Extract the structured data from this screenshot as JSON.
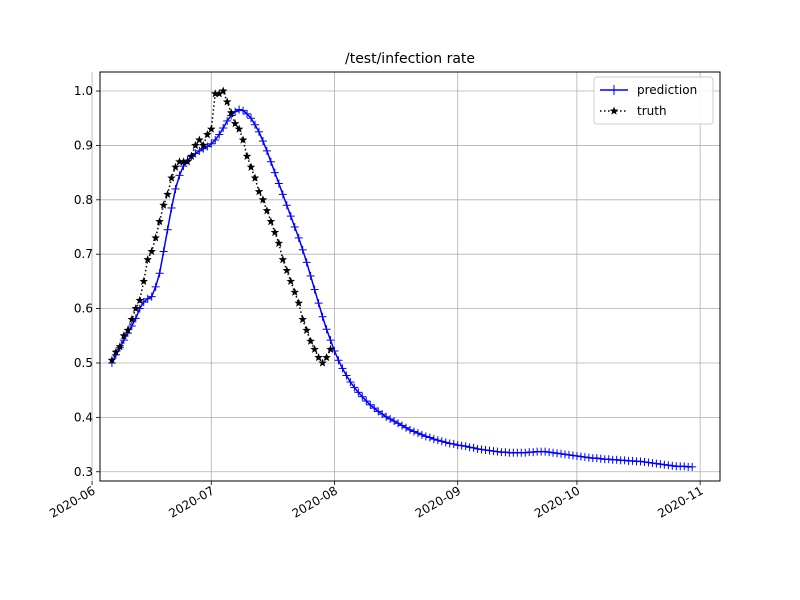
{
  "chart_data": {
    "type": "line",
    "title": "/test/infection rate",
    "xlabel": "",
    "ylabel": "",
    "x_axis_type": "date",
    "xlim": [
      "2020-06-03",
      "2020-11-06"
    ],
    "ylim": [
      0.283,
      1.035
    ],
    "grid": true,
    "legend_position": "upper right",
    "x_ticks": [
      "2020-06-01",
      "2020-07-01",
      "2020-08-01",
      "2020-09-01",
      "2020-10-01",
      "2020-11-01"
    ],
    "x_tick_labels": [
      "2020-06",
      "2020-07",
      "2020-08",
      "2020-09",
      "2020-10",
      "2020-11"
    ],
    "y_ticks": [
      0.3,
      0.4,
      0.5,
      0.6,
      0.7,
      0.8,
      0.9,
      1.0
    ],
    "y_tick_labels": [
      "0.3",
      "0.4",
      "0.5",
      "0.6",
      "0.7",
      "0.8",
      "0.9",
      "1.0"
    ],
    "series": [
      {
        "name": "prediction",
        "color": "#0000ff",
        "line_style": "solid",
        "marker": "plus",
        "x": [
          "2020-06-06",
          "2020-06-07",
          "2020-06-08",
          "2020-06-09",
          "2020-06-10",
          "2020-06-11",
          "2020-06-12",
          "2020-06-13",
          "2020-06-14",
          "2020-06-15",
          "2020-06-16",
          "2020-06-17",
          "2020-06-18",
          "2020-06-19",
          "2020-06-20",
          "2020-06-21",
          "2020-06-22",
          "2020-06-23",
          "2020-06-24",
          "2020-06-25",
          "2020-06-26",
          "2020-06-27",
          "2020-06-28",
          "2020-06-29",
          "2020-06-30",
          "2020-07-01",
          "2020-07-02",
          "2020-07-03",
          "2020-07-04",
          "2020-07-05",
          "2020-07-06",
          "2020-07-07",
          "2020-07-08",
          "2020-07-09",
          "2020-07-10",
          "2020-07-11",
          "2020-07-12",
          "2020-07-13",
          "2020-07-14",
          "2020-07-15",
          "2020-07-16",
          "2020-07-17",
          "2020-07-18",
          "2020-07-19",
          "2020-07-20",
          "2020-07-21",
          "2020-07-22",
          "2020-07-23",
          "2020-07-24",
          "2020-07-25",
          "2020-07-26",
          "2020-07-27",
          "2020-07-28",
          "2020-07-29",
          "2020-07-30",
          "2020-07-31",
          "2020-08-01",
          "2020-08-02",
          "2020-08-03",
          "2020-08-04",
          "2020-08-05",
          "2020-08-06",
          "2020-08-07",
          "2020-08-08",
          "2020-08-09",
          "2020-08-10",
          "2020-08-11",
          "2020-08-12",
          "2020-08-13",
          "2020-08-14",
          "2020-08-15",
          "2020-08-16",
          "2020-08-17",
          "2020-08-18",
          "2020-08-19",
          "2020-08-20",
          "2020-08-21",
          "2020-08-22",
          "2020-08-23",
          "2020-08-24",
          "2020-08-25",
          "2020-08-26",
          "2020-08-27",
          "2020-08-28",
          "2020-08-29",
          "2020-08-30",
          "2020-08-31",
          "2020-09-01",
          "2020-09-02",
          "2020-09-03",
          "2020-09-04",
          "2020-09-05",
          "2020-09-06",
          "2020-09-07",
          "2020-09-08",
          "2020-09-09",
          "2020-09-10",
          "2020-09-11",
          "2020-09-12",
          "2020-09-13",
          "2020-09-14",
          "2020-09-15",
          "2020-09-16",
          "2020-09-17",
          "2020-09-18",
          "2020-09-19",
          "2020-09-20",
          "2020-09-21",
          "2020-09-22",
          "2020-09-23",
          "2020-09-24",
          "2020-09-25",
          "2020-09-26",
          "2020-09-27",
          "2020-09-28",
          "2020-09-29",
          "2020-09-30",
          "2020-10-01",
          "2020-10-02",
          "2020-10-03",
          "2020-10-04",
          "2020-10-05",
          "2020-10-06",
          "2020-10-07",
          "2020-10-08",
          "2020-10-09",
          "2020-10-10",
          "2020-10-11",
          "2020-10-12",
          "2020-10-13",
          "2020-10-14",
          "2020-10-15",
          "2020-10-16",
          "2020-10-17",
          "2020-10-18",
          "2020-10-19",
          "2020-10-20",
          "2020-10-21",
          "2020-10-22",
          "2020-10-23",
          "2020-10-24",
          "2020-10-25",
          "2020-10-26",
          "2020-10-27",
          "2020-10-28",
          "2020-10-29",
          "2020-10-30"
        ],
        "values": [
          0.5,
          0.515,
          0.528,
          0.542,
          0.555,
          0.568,
          0.582,
          0.6,
          0.612,
          0.618,
          0.622,
          0.64,
          0.665,
          0.705,
          0.745,
          0.785,
          0.82,
          0.845,
          0.862,
          0.873,
          0.88,
          0.885,
          0.89,
          0.894,
          0.898,
          0.903,
          0.91,
          0.92,
          0.932,
          0.945,
          0.955,
          0.962,
          0.966,
          0.964,
          0.958,
          0.95,
          0.938,
          0.925,
          0.908,
          0.89,
          0.87,
          0.85,
          0.83,
          0.81,
          0.79,
          0.77,
          0.75,
          0.73,
          0.708,
          0.685,
          0.66,
          0.635,
          0.61,
          0.585,
          0.562,
          0.542,
          0.522,
          0.505,
          0.49,
          0.477,
          0.465,
          0.455,
          0.446,
          0.438,
          0.43,
          0.423,
          0.417,
          0.411,
          0.406,
          0.401,
          0.397,
          0.393,
          0.389,
          0.385,
          0.381,
          0.377,
          0.374,
          0.371,
          0.368,
          0.365,
          0.363,
          0.36,
          0.358,
          0.356,
          0.354,
          0.352,
          0.351,
          0.349,
          0.348,
          0.347,
          0.345,
          0.344,
          0.342,
          0.341,
          0.34,
          0.339,
          0.338,
          0.337,
          0.336,
          0.336,
          0.335,
          0.335,
          0.335,
          0.335,
          0.335,
          0.336,
          0.336,
          0.337,
          0.337,
          0.337,
          0.336,
          0.335,
          0.334,
          0.333,
          0.332,
          0.331,
          0.33,
          0.329,
          0.328,
          0.327,
          0.326,
          0.325,
          0.325,
          0.324,
          0.323,
          0.323,
          0.322,
          0.322,
          0.321,
          0.321,
          0.32,
          0.32,
          0.319,
          0.319,
          0.318,
          0.317,
          0.316,
          0.315,
          0.314,
          0.313,
          0.312,
          0.311,
          0.31,
          0.31,
          0.31,
          0.309,
          0.309
        ]
      },
      {
        "name": "truth",
        "color": "#000000",
        "line_style": "dotted",
        "marker": "star",
        "x": [
          "2020-06-06",
          "2020-06-07",
          "2020-06-08",
          "2020-06-09",
          "2020-06-10",
          "2020-06-11",
          "2020-06-12",
          "2020-06-13",
          "2020-06-14",
          "2020-06-15",
          "2020-06-16",
          "2020-06-17",
          "2020-06-18",
          "2020-06-19",
          "2020-06-20",
          "2020-06-21",
          "2020-06-22",
          "2020-06-23",
          "2020-06-24",
          "2020-06-25",
          "2020-06-26",
          "2020-06-27",
          "2020-06-28",
          "2020-06-29",
          "2020-06-30",
          "2020-07-01",
          "2020-07-02",
          "2020-07-03",
          "2020-07-04",
          "2020-07-05",
          "2020-07-06",
          "2020-07-07",
          "2020-07-08",
          "2020-07-09",
          "2020-07-10",
          "2020-07-11",
          "2020-07-12",
          "2020-07-13",
          "2020-07-14",
          "2020-07-15",
          "2020-07-16",
          "2020-07-17",
          "2020-07-18",
          "2020-07-19",
          "2020-07-20",
          "2020-07-21",
          "2020-07-22",
          "2020-07-23",
          "2020-07-24",
          "2020-07-25",
          "2020-07-26",
          "2020-07-27",
          "2020-07-28",
          "2020-07-29",
          "2020-07-30",
          "2020-07-31"
        ],
        "values": [
          0.505,
          0.52,
          0.53,
          0.55,
          0.56,
          0.58,
          0.6,
          0.615,
          0.65,
          0.69,
          0.705,
          0.73,
          0.76,
          0.79,
          0.81,
          0.84,
          0.86,
          0.87,
          0.87,
          0.87,
          0.88,
          0.9,
          0.91,
          0.9,
          0.92,
          0.93,
          0.995,
          0.995,
          1.0,
          0.98,
          0.96,
          0.94,
          0.93,
          0.91,
          0.88,
          0.86,
          0.84,
          0.815,
          0.8,
          0.78,
          0.76,
          0.74,
          0.72,
          0.69,
          0.67,
          0.65,
          0.63,
          0.61,
          0.58,
          0.56,
          0.54,
          0.525,
          0.51,
          0.5,
          0.51,
          0.525
        ]
      }
    ]
  }
}
